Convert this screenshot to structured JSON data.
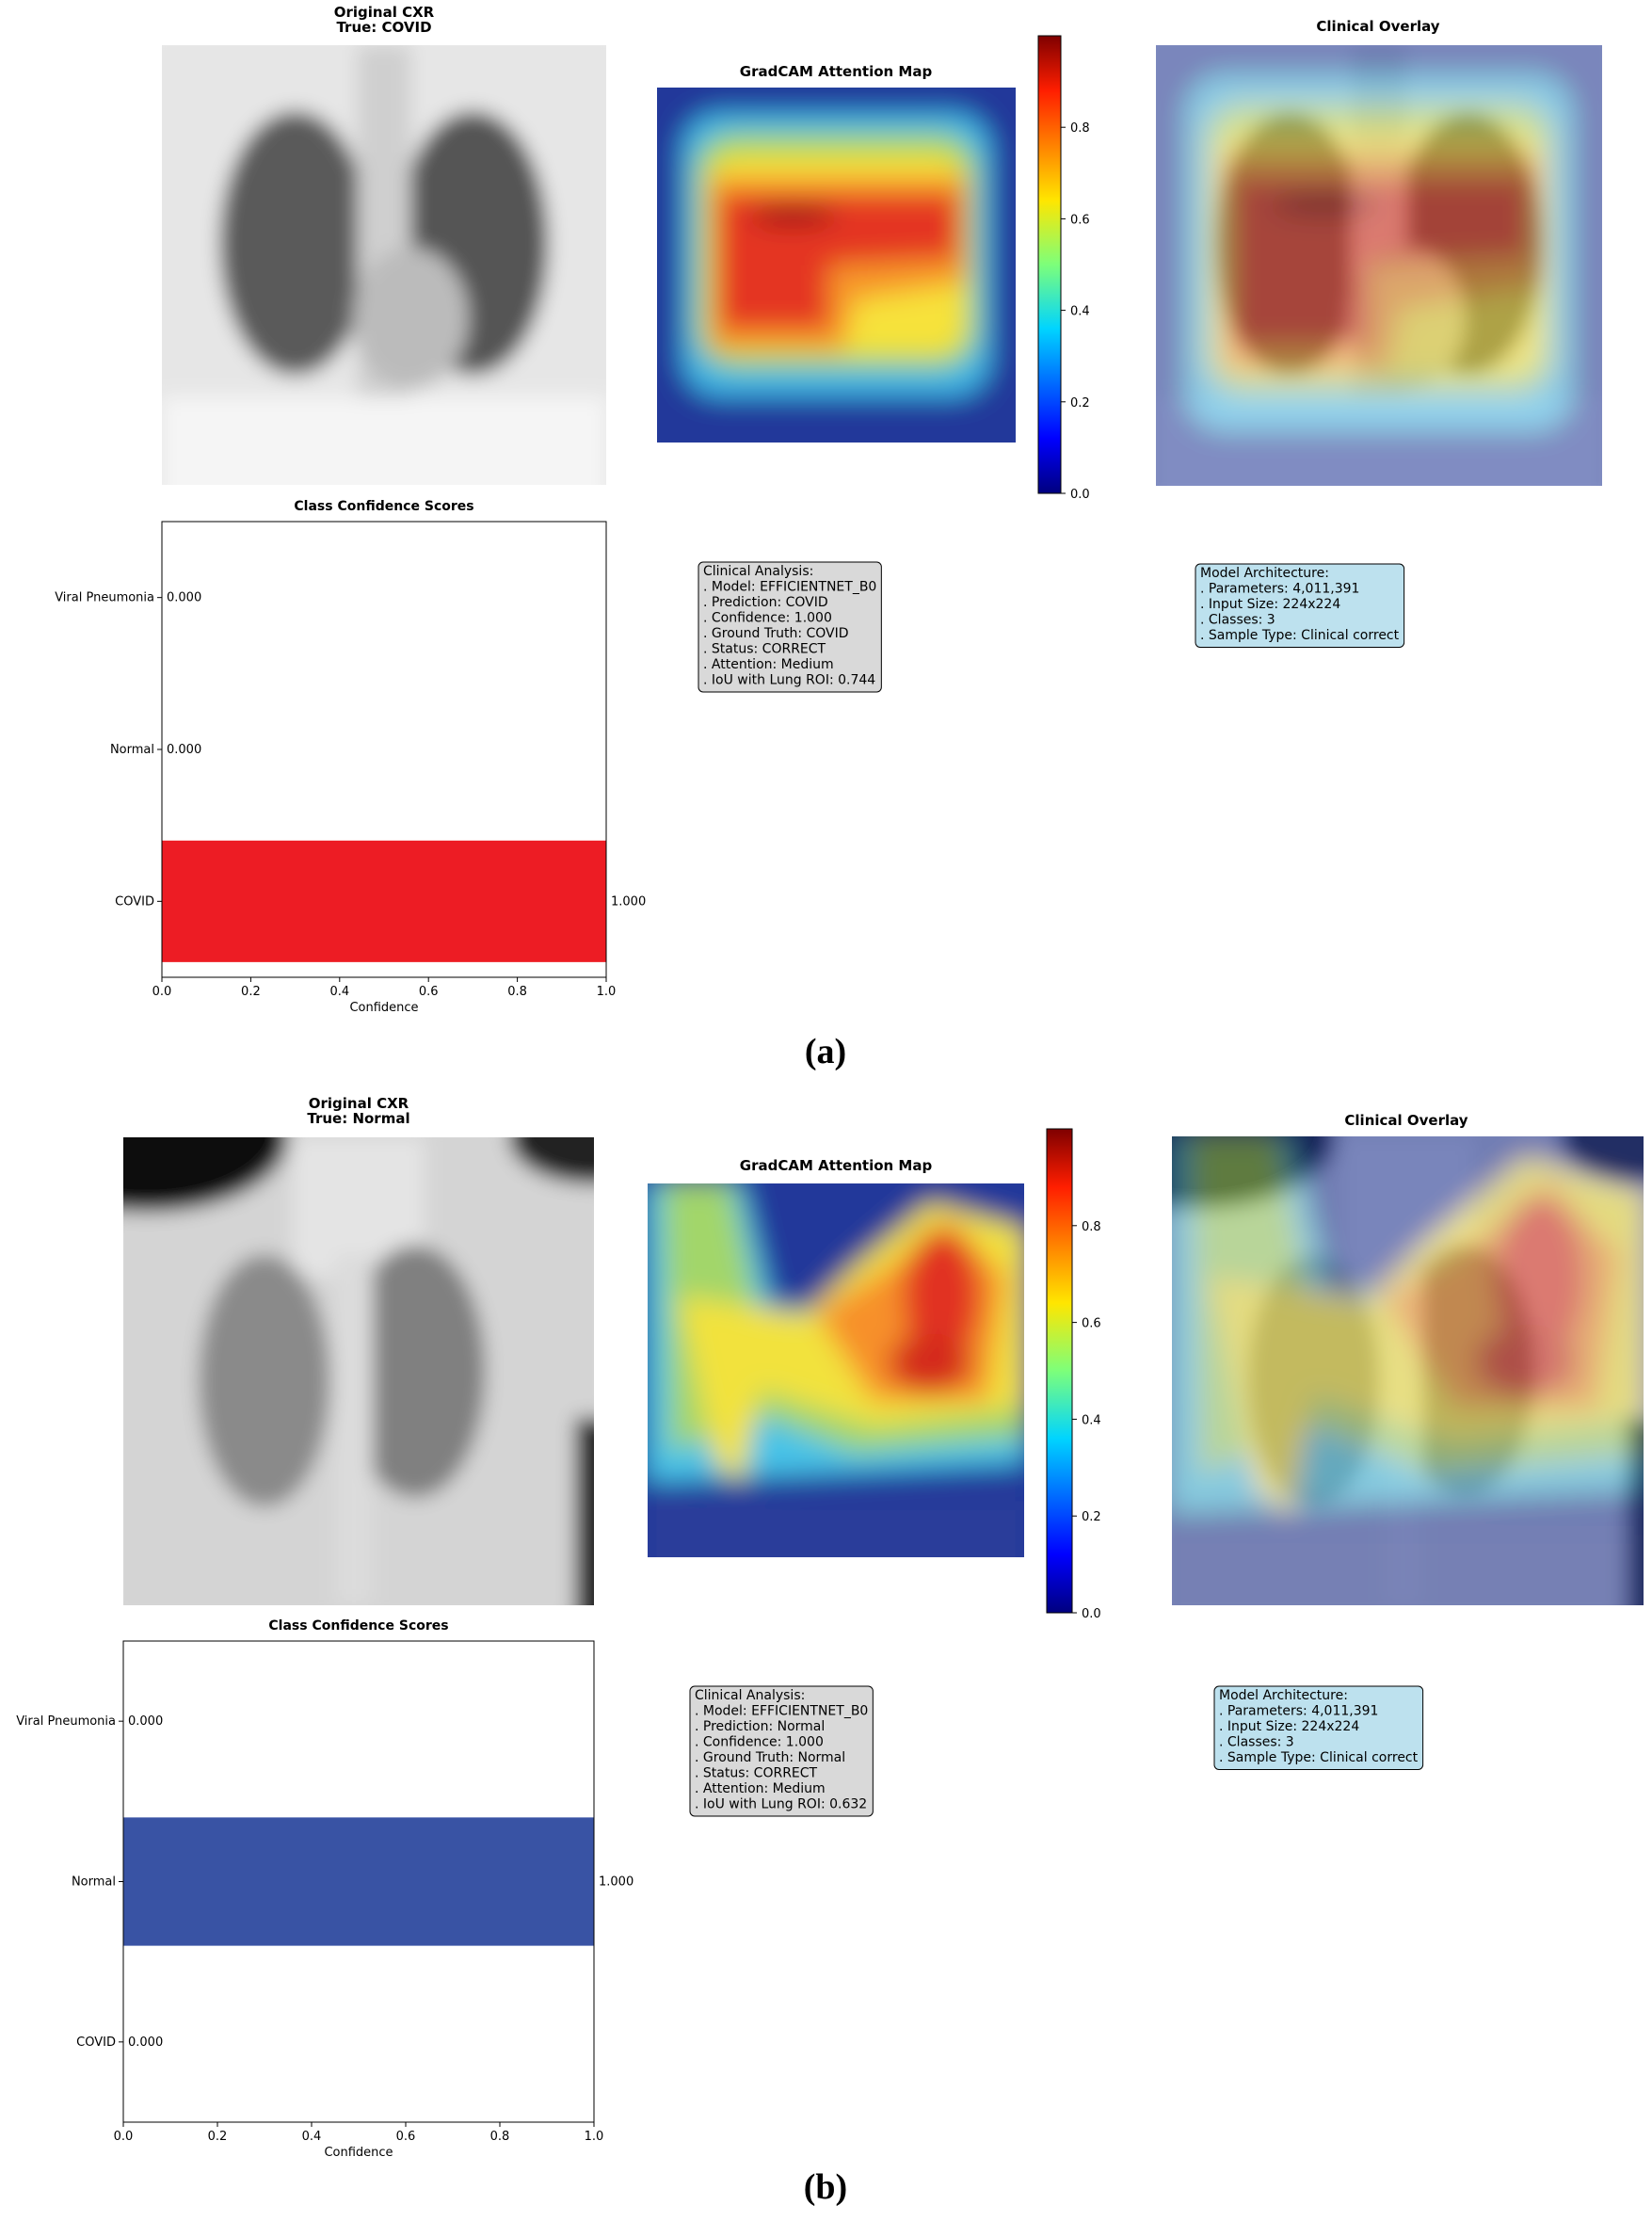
{
  "panels": [
    {
      "original_title": "Original CXR",
      "original_subtitle": "True: COVID",
      "gradcam_title": "GradCAM Attention Map",
      "overlay_title": "Clinical Overlay",
      "colorbar": {
        "ylim": [
          0,
          1
        ],
        "yticks": [
          {
            "value": 0,
            "label": "0.0"
          },
          {
            "value": 0.2,
            "label": "0.2"
          },
          {
            "value": 0.4,
            "label": "0.4"
          },
          {
            "value": 0.6,
            "label": "0.6"
          },
          {
            "value": 0.8,
            "label": "0.8"
          }
        ]
      },
      "analysis_box": [
        "Clinical Analysis:",
        ". Model: EFFICIENTNET_B0",
        ". Prediction: COVID",
        ". Confidence: 1.000",
        ". Ground Truth: COVID",
        ". Status: CORRECT",
        ". Attention: Medium",
        ". IoU with Lung ROI: 0.744"
      ],
      "architecture_box": [
        "Model Architecture:",
        ". Parameters: 4,011,391",
        ". Input Size: 224x224",
        ". Classes: 3",
        ". Sample Type: Clinical correct"
      ],
      "caption": "(a)"
    },
    {
      "original_title": "Original CXR",
      "original_subtitle": "True: Normal",
      "gradcam_title": "GradCAM Attention Map",
      "overlay_title": "Clinical Overlay",
      "colorbar": {
        "ylim": [
          0,
          1
        ],
        "yticks": [
          {
            "value": 0,
            "label": "0.0"
          },
          {
            "value": 0.2,
            "label": "0.2"
          },
          {
            "value": 0.4,
            "label": "0.4"
          },
          {
            "value": 0.6,
            "label": "0.6"
          },
          {
            "value": 0.8,
            "label": "0.8"
          }
        ]
      },
      "analysis_box": [
        "Clinical Analysis:",
        ". Model: EFFICIENTNET_B0",
        ". Prediction: Normal",
        ". Confidence: 1.000",
        ". Ground Truth: Normal",
        ". Status: CORRECT",
        ". Attention: Medium",
        ". IoU with Lung ROI: 0.632"
      ],
      "architecture_box": [
        "Model Architecture:",
        ". Parameters: 4,011,391",
        ". Input Size: 224x224",
        ". Classes: 3",
        ". Sample Type: Clinical correct"
      ],
      "caption": "(b)"
    }
  ],
  "chart_data": [
    {
      "type": "bar",
      "orientation": "horizontal",
      "title": "Class Confidence Scores",
      "categories": [
        "COVID",
        "Normal",
        "Viral Pneumonia"
      ],
      "values": [
        1,
        0,
        0
      ],
      "value_labels": [
        "1.000",
        "0.000",
        "0.000"
      ],
      "color": "#ed1c24",
      "xlim": [
        0,
        1
      ],
      "xticks": [
        {
          "value": 0,
          "label": "0.0"
        },
        {
          "value": 0.2,
          "label": "0.2"
        },
        {
          "value": 0.4,
          "label": "0.4"
        },
        {
          "value": 0.6,
          "label": "0.6"
        },
        {
          "value": 0.8,
          "label": "0.8"
        },
        {
          "value": 1,
          "label": "1.0"
        }
      ],
      "x_label": "Confidence"
    },
    {
      "type": "bar",
      "orientation": "horizontal",
      "title": "Class Confidence Scores",
      "categories": [
        "COVID",
        "Normal",
        "Viral Pneumonia"
      ],
      "values": [
        0,
        1,
        0
      ],
      "value_labels": [
        "0.000",
        "1.000",
        "0.000"
      ],
      "color": "#3953a4",
      "xlim": [
        0,
        1
      ],
      "xticks": [
        {
          "value": 0,
          "label": "0.0"
        },
        {
          "value": 0.2,
          "label": "0.2"
        },
        {
          "value": 0.4,
          "label": "0.4"
        },
        {
          "value": 0.6,
          "label": "0.6"
        },
        {
          "value": 0.8,
          "label": "0.8"
        },
        {
          "value": 1,
          "label": "1.0"
        }
      ],
      "x_label": "Confidence"
    }
  ]
}
